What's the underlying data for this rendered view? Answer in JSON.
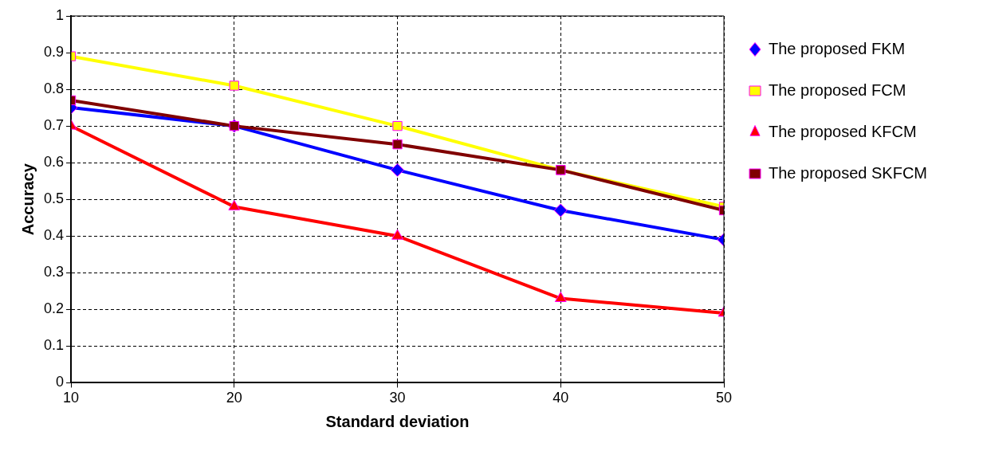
{
  "chart_data": {
    "type": "line",
    "xlabel": "Standard deviation",
    "ylabel": "Accuracy",
    "x": [
      10,
      20,
      30,
      40,
      50
    ],
    "xlim": [
      10,
      50
    ],
    "xticks": [
      10,
      20,
      30,
      40,
      50
    ],
    "ylim": [
      0,
      1
    ],
    "yticks": [
      0,
      0.1,
      0.2,
      0.3,
      0.4,
      0.5,
      0.6,
      0.7,
      0.8,
      0.9,
      1
    ],
    "grid": true,
    "legend": "top right",
    "line_style": "solid",
    "series": [
      {
        "name": "The proposed FKM",
        "color": "#0000ff",
        "marker": "diamond",
        "values": [
          0.75,
          0.7,
          0.58,
          0.47,
          0.39
        ]
      },
      {
        "name": "The proposed FCM",
        "color": "#ffff00",
        "marker": "square",
        "values": [
          0.89,
          0.81,
          0.7,
          0.58,
          0.48
        ]
      },
      {
        "name": "The proposed KFCM",
        "color": "#ff0000",
        "marker": "triangle",
        "values": [
          0.7,
          0.48,
          0.4,
          0.23,
          0.19
        ]
      },
      {
        "name": "The proposed SKFCM",
        "color": "#800000",
        "marker": "square",
        "values": [
          0.77,
          0.7,
          0.65,
          0.58,
          0.47
        ]
      }
    ]
  }
}
